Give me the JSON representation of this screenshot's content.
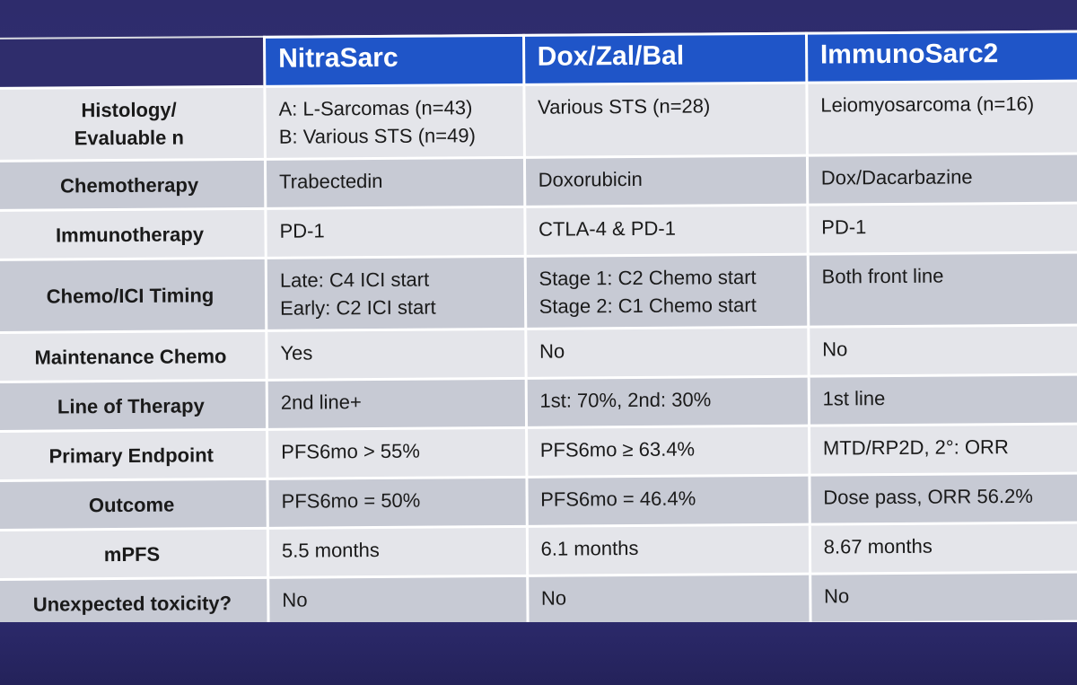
{
  "columns": [
    "NitraSarc",
    "Dox/Zal/Bal",
    "ImmunoSarc2"
  ],
  "rows": [
    {
      "label": "Histology/\nEvaluable n",
      "values": [
        "A: L-Sarcomas (n=43)\nB: Various STS (n=49)",
        "Various STS (n=28)",
        "Leiomyosarcoma (n=16)"
      ]
    },
    {
      "label": "Chemotherapy",
      "values": [
        "Trabectedin",
        "Doxorubicin",
        "Dox/Dacarbazine"
      ]
    },
    {
      "label": "Immunotherapy",
      "values": [
        "PD-1",
        "CTLA-4 & PD-1",
        "PD-1"
      ]
    },
    {
      "label": "Chemo/ICI Timing",
      "values": [
        "Late:  C4 ICI start\nEarly: C2 ICI start",
        "Stage 1: C2 Chemo start\nStage 2: C1 Chemo start",
        "Both front line"
      ]
    },
    {
      "label": "Maintenance Chemo",
      "values": [
        "Yes",
        "No",
        "No"
      ]
    },
    {
      "label": "Line of Therapy",
      "values": [
        "2nd line+",
        "1st: 70%, 2nd: 30%",
        "1st line"
      ]
    },
    {
      "label": "Primary Endpoint",
      "values": [
        "PFS6mo > 55%",
        "PFS6mo ≥ 63.4%",
        "MTD/RP2D, 2°: ORR"
      ]
    },
    {
      "label": "Outcome",
      "values": [
        "PFS6mo = 50%",
        "PFS6mo = 46.4%",
        "Dose pass, ORR 56.2%"
      ]
    },
    {
      "label": "mPFS",
      "values": [
        "5.5 months",
        "6.1 months",
        "8.67 months"
      ]
    },
    {
      "label": "Unexpected toxicity?",
      "values": [
        "No",
        "No",
        "No"
      ]
    }
  ]
}
